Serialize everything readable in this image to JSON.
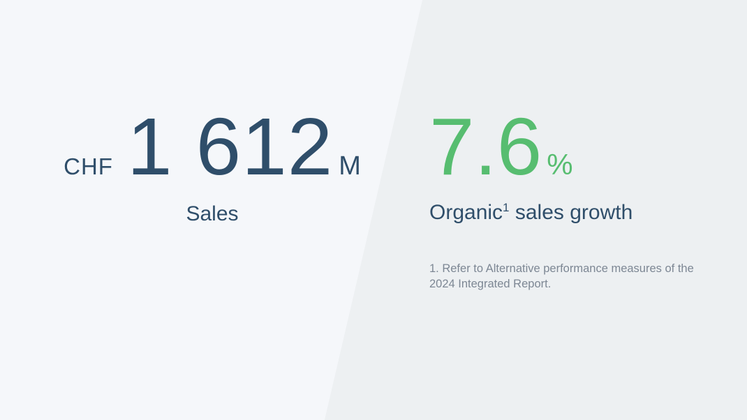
{
  "theme": {
    "left_panel_bg": "#f5f7fa",
    "right_panel_bg": "#edf0f2",
    "navy_text": "#2f4e6a",
    "green_accent": "#57bd70",
    "footnote_gray": "#7d8794"
  },
  "left_stat": {
    "currency": "CHF",
    "value": "1 612",
    "unit": "M",
    "label": "Sales"
  },
  "right_stat": {
    "value": "7.6",
    "unit": "%",
    "label_prefix": "Organic",
    "label_superscript": "1",
    "label_suffix": " sales growth",
    "footnote": "1. Refer to Alternative performance measures of the 2024 Integrated Report."
  },
  "chart_data": {
    "type": "table",
    "title": "",
    "metrics": [
      {
        "label": "Sales",
        "currency": "CHF",
        "value": 1612,
        "unit": "M",
        "display": "CHF 1 612 M"
      },
      {
        "label": "Organic sales growth",
        "value": 7.6,
        "unit": "%",
        "display": "7.6%"
      }
    ],
    "footnote": "1. Refer to Alternative performance measures of the 2024 Integrated Report."
  }
}
